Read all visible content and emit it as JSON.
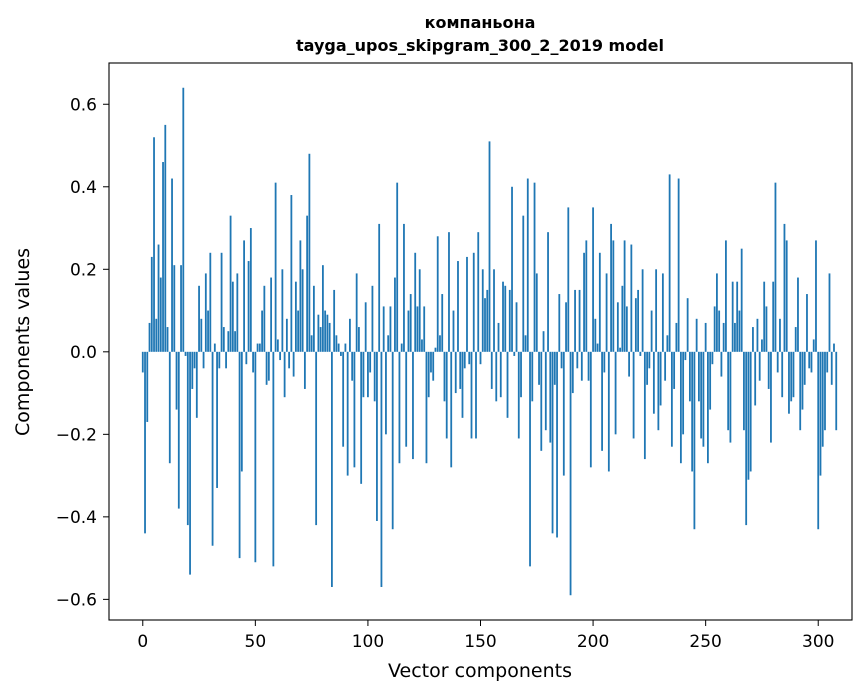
{
  "chart_data": {
    "type": "bar",
    "title": "компаньона\ntayga_upos_skipgram_300_2_2019 model",
    "title_lines": [
      "компаньона",
      "tayga_upos_skipgram_300_2_2019 model"
    ],
    "xlabel": "Vector components",
    "ylabel": "Components values",
    "xlim": [
      -15,
      315
    ],
    "ylim": [
      -0.65,
      0.7
    ],
    "xticks": [
      0,
      50,
      100,
      150,
      200,
      250,
      300
    ],
    "xtick_labels": [
      "0",
      "50",
      "100",
      "150",
      "200",
      "250",
      "300"
    ],
    "yticks": [
      -0.6,
      -0.4,
      -0.2,
      0.0,
      0.2,
      0.4,
      0.6
    ],
    "ytick_labels": [
      "−0.6",
      "−0.4",
      "−0.2",
      "0.0",
      "0.2",
      "0.4",
      "0.6"
    ],
    "grid": false,
    "bar_color": "#1f77b4",
    "values": [
      -0.05,
      -0.44,
      -0.17,
      0.07,
      0.23,
      0.52,
      0.08,
      0.26,
      0.18,
      0.46,
      0.55,
      0.06,
      -0.27,
      0.42,
      0.21,
      -0.14,
      -0.38,
      0.21,
      0.64,
      -0.01,
      -0.42,
      -0.54,
      -0.09,
      -0.04,
      -0.16,
      0.16,
      0.08,
      -0.04,
      0.19,
      0.1,
      0.24,
      -0.47,
      0.02,
      -0.33,
      -0.04,
      0.24,
      0.06,
      -0.04,
      0.05,
      0.33,
      0.17,
      0.05,
      0.19,
      -0.5,
      -0.29,
      0.27,
      -0.03,
      0.22,
      0.3,
      -0.05,
      -0.51,
      0.02,
      0.02,
      0.1,
      0.16,
      -0.08,
      -0.07,
      0.18,
      -0.52,
      0.41,
      0.03,
      -0.02,
      0.2,
      -0.11,
      0.08,
      -0.04,
      0.38,
      -0.06,
      0.17,
      0.1,
      0.27,
      0.2,
      -0.09,
      0.33,
      0.48,
      0.04,
      0.16,
      -0.42,
      0.09,
      0.06,
      0.21,
      0.1,
      0.09,
      0.07,
      -0.57,
      0.15,
      0.04,
      0.02,
      -0.01,
      -0.23,
      0.02,
      -0.3,
      0.08,
      -0.07,
      -0.28,
      0.19,
      0.06,
      -0.32,
      -0.11,
      0.12,
      -0.11,
      -0.05,
      0.16,
      -0.12,
      -0.41,
      0.31,
      -0.57,
      0.11,
      -0.2,
      0.04,
      0.11,
      -0.43,
      0.18,
      0.41,
      -0.27,
      0.02,
      0.31,
      -0.23,
      0.1,
      0.14,
      -0.26,
      0.24,
      0.11,
      0.2,
      0.03,
      0.11,
      -0.27,
      -0.11,
      -0.05,
      -0.07,
      0.01,
      0.28,
      0.04,
      0.14,
      -0.12,
      -0.21,
      0.29,
      -0.28,
      0.1,
      -0.1,
      0.22,
      -0.09,
      -0.16,
      -0.04,
      0.23,
      -0.03,
      -0.21,
      0.24,
      -0.21,
      0.29,
      -0.03,
      0.2,
      0.13,
      0.15,
      0.51,
      -0.09,
      0.2,
      -0.12,
      0.07,
      -0.11,
      0.17,
      0.16,
      -0.16,
      0.15,
      0.4,
      -0.01,
      0.12,
      -0.21,
      -0.11,
      0.33,
      0.04,
      0.42,
      -0.52,
      -0.12,
      0.41,
      0.19,
      -0.08,
      -0.24,
      0.05,
      -0.19,
      0.29,
      -0.22,
      -0.44,
      -0.08,
      -0.45,
      0.14,
      -0.04,
      -0.3,
      0.12,
      0.35,
      -0.59,
      -0.1,
      0.15,
      -0.04,
      0.15,
      -0.07,
      0.24,
      0.27,
      -0.07,
      -0.28,
      0.35,
      0.08,
      0.02,
      0.24,
      -0.24,
      -0.05,
      0.19,
      -0.29,
      0.31,
      0.27,
      -0.2,
      0.12,
      0.01,
      0.16,
      0.27,
      0.11,
      -0.06,
      0.26,
      -0.21,
      0.13,
      0.15,
      -0.01,
      0.2,
      -0.26,
      -0.08,
      -0.04,
      0.1,
      -0.15,
      0.2,
      -0.19,
      -0.13,
      0.19,
      -0.07,
      0.04,
      0.43,
      -0.23,
      -0.09,
      0.07,
      0.42,
      -0.27,
      -0.2,
      -0.02,
      0.13,
      -0.12,
      -0.29,
      -0.43,
      0.08,
      -0.12,
      -0.21,
      -0.23,
      0.07,
      -0.27,
      -0.14,
      -0.03,
      0.11,
      0.19,
      0.1,
      -0.06,
      0.07,
      0.27,
      -0.19,
      -0.22,
      0.17,
      0.07,
      0.17,
      0.1,
      0.25,
      -0.19,
      -0.42,
      -0.31,
      -0.29,
      0.06,
      -0.13,
      0.08,
      -0.07,
      0.03,
      0.17,
      0.11,
      -0.09,
      -0.22,
      0.17,
      0.41,
      -0.05,
      0.08,
      -0.11,
      0.31,
      0.27,
      -0.15,
      -0.12,
      -0.11,
      0.06,
      0.18,
      -0.19,
      -0.14,
      -0.08,
      0.14,
      -0.04,
      -0.05,
      0.03,
      0.27,
      -0.43,
      -0.3,
      -0.23,
      -0.19,
      -0.05,
      0.19,
      -0.08,
      0.02,
      -0.19
    ]
  }
}
